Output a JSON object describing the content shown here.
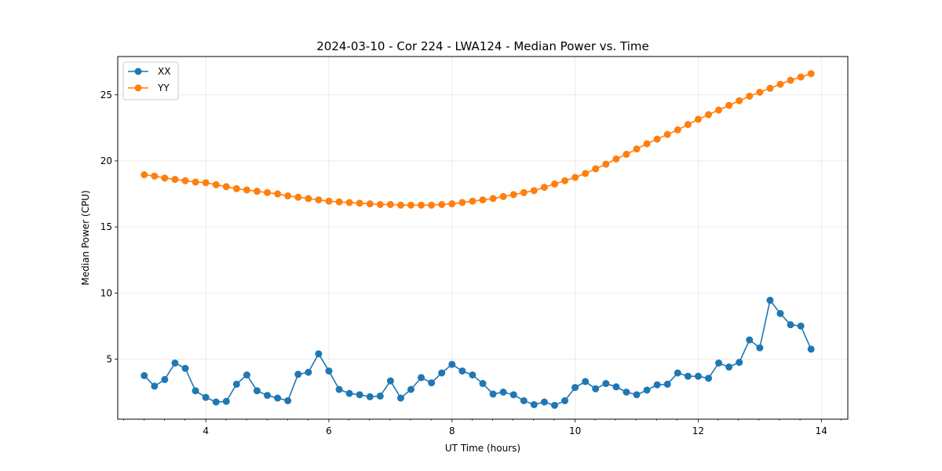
{
  "chart_data": {
    "type": "line",
    "title": "2024-03-10 - Cor 224 - LWA124 - Median Power vs. Time",
    "xlabel": "UT Time (hours)",
    "ylabel": "Median Power (CPU)",
    "xlim": [
      2.57,
      14.43
    ],
    "ylim": [
      0.45,
      27.9
    ],
    "xticks": [
      4,
      6,
      8,
      10,
      12,
      14
    ],
    "xtick_labels": [
      "4",
      "6",
      "8",
      "10",
      "12",
      "14"
    ],
    "yticks": [
      5,
      10,
      15,
      20,
      25
    ],
    "ytick_labels": [
      "5",
      "10",
      "15",
      "20",
      "25"
    ],
    "x_minor_step": 0.333,
    "grid": true,
    "legend_position": "upper-left",
    "x": [
      3.0,
      3.167,
      3.333,
      3.5,
      3.667,
      3.833,
      4.0,
      4.167,
      4.333,
      4.5,
      4.667,
      4.833,
      5.0,
      5.167,
      5.333,
      5.5,
      5.667,
      5.833,
      6.0,
      6.167,
      6.333,
      6.5,
      6.667,
      6.833,
      7.0,
      7.167,
      7.333,
      7.5,
      7.667,
      7.833,
      8.0,
      8.167,
      8.333,
      8.5,
      8.667,
      8.833,
      9.0,
      9.167,
      9.333,
      9.5,
      9.667,
      9.833,
      10.0,
      10.167,
      10.333,
      10.5,
      10.667,
      10.833,
      11.0,
      11.167,
      11.333,
      11.5,
      11.667,
      11.833,
      12.0,
      12.167,
      12.333,
      12.5,
      12.667,
      12.833,
      13.0,
      13.167,
      13.333,
      13.5,
      13.667,
      13.833
    ],
    "series": [
      {
        "name": "XX",
        "color": "#1f77b4",
        "values": [
          3.75,
          2.95,
          3.45,
          4.7,
          4.3,
          2.6,
          2.1,
          1.75,
          1.8,
          3.1,
          3.8,
          2.6,
          2.25,
          2.05,
          1.85,
          3.85,
          4.0,
          5.4,
          4.1,
          2.7,
          2.4,
          2.3,
          2.15,
          2.2,
          3.35,
          2.05,
          2.7,
          3.6,
          3.2,
          3.95,
          4.6,
          4.1,
          3.8,
          3.15,
          2.35,
          2.5,
          2.3,
          1.85,
          1.55,
          1.75,
          1.5,
          1.85,
          2.85,
          3.3,
          2.75,
          3.15,
          2.9,
          2.5,
          2.3,
          2.65,
          3.05,
          3.1,
          3.95,
          3.7,
          3.7,
          3.55,
          4.7,
          4.4,
          4.75,
          6.45,
          5.85,
          9.45,
          8.45,
          7.6,
          7.5,
          5.75
        ]
      },
      {
        "name": "YY",
        "color": "#ff7f0e",
        "values": [
          18.95,
          18.85,
          18.7,
          18.6,
          18.5,
          18.4,
          18.35,
          18.2,
          18.05,
          17.9,
          17.8,
          17.7,
          17.6,
          17.5,
          17.35,
          17.25,
          17.15,
          17.05,
          16.95,
          16.9,
          16.85,
          16.8,
          16.75,
          16.7,
          16.7,
          16.65,
          16.65,
          16.65,
          16.65,
          16.7,
          16.75,
          16.85,
          16.95,
          17.05,
          17.15,
          17.3,
          17.45,
          17.6,
          17.75,
          18.0,
          18.25,
          18.5,
          18.75,
          19.05,
          19.4,
          19.75,
          20.15,
          20.5,
          20.9,
          21.3,
          21.65,
          22.0,
          22.35,
          22.75,
          23.15,
          23.5,
          23.85,
          24.2,
          24.55,
          24.9,
          25.2,
          25.5,
          25.8,
          26.1,
          26.35,
          26.6
        ]
      }
    ]
  }
}
